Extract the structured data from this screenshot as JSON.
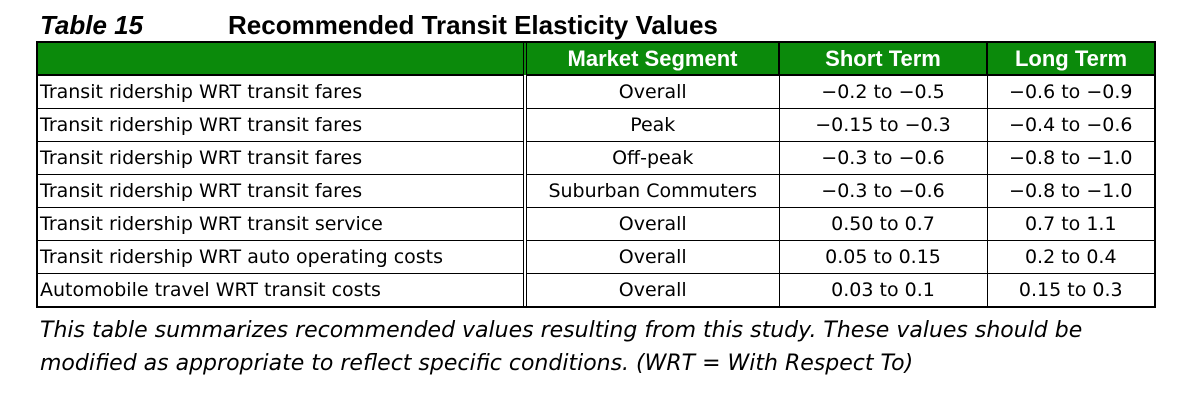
{
  "caption": {
    "table_number": "Table 15",
    "title": "Recommended Transit Elasticity Values"
  },
  "table": {
    "headers": [
      "",
      "Market Segment",
      "Short Term",
      "Long Term"
    ],
    "header_color": "#0b8a0b",
    "rows": [
      [
        "Transit ridership WRT transit fares",
        "Overall",
        "−0.2 to −0.5",
        "−0.6 to −0.9"
      ],
      [
        "Transit ridership WRT transit fares",
        "Peak",
        "−0.15 to −0.3",
        "−0.4 to −0.6"
      ],
      [
        "Transit ridership WRT transit fares",
        "Off-peak",
        "−0.3 to −0.6",
        "−0.8 to −1.0"
      ],
      [
        "Transit ridership WRT transit fares",
        "Suburban Commuters",
        "−0.3 to −0.6",
        "−0.8 to −1.0"
      ],
      [
        "Transit ridership WRT transit service",
        "Overall",
        "0.50 to 0.7",
        "0.7 to 1.1"
      ],
      [
        "Transit ridership WRT auto operating costs",
        "Overall",
        "0.05 to 0.15",
        "0.2 to 0.4"
      ],
      [
        "Automobile travel WRT transit costs",
        "Overall",
        "0.03 to 0.1",
        "0.15 to 0.3"
      ]
    ]
  },
  "note": {
    "line1": "This table summarizes recommended values resulting from this study. These values should be",
    "line2": "modified as appropriate to reflect specific conditions. (WRT = With Respect To)"
  }
}
